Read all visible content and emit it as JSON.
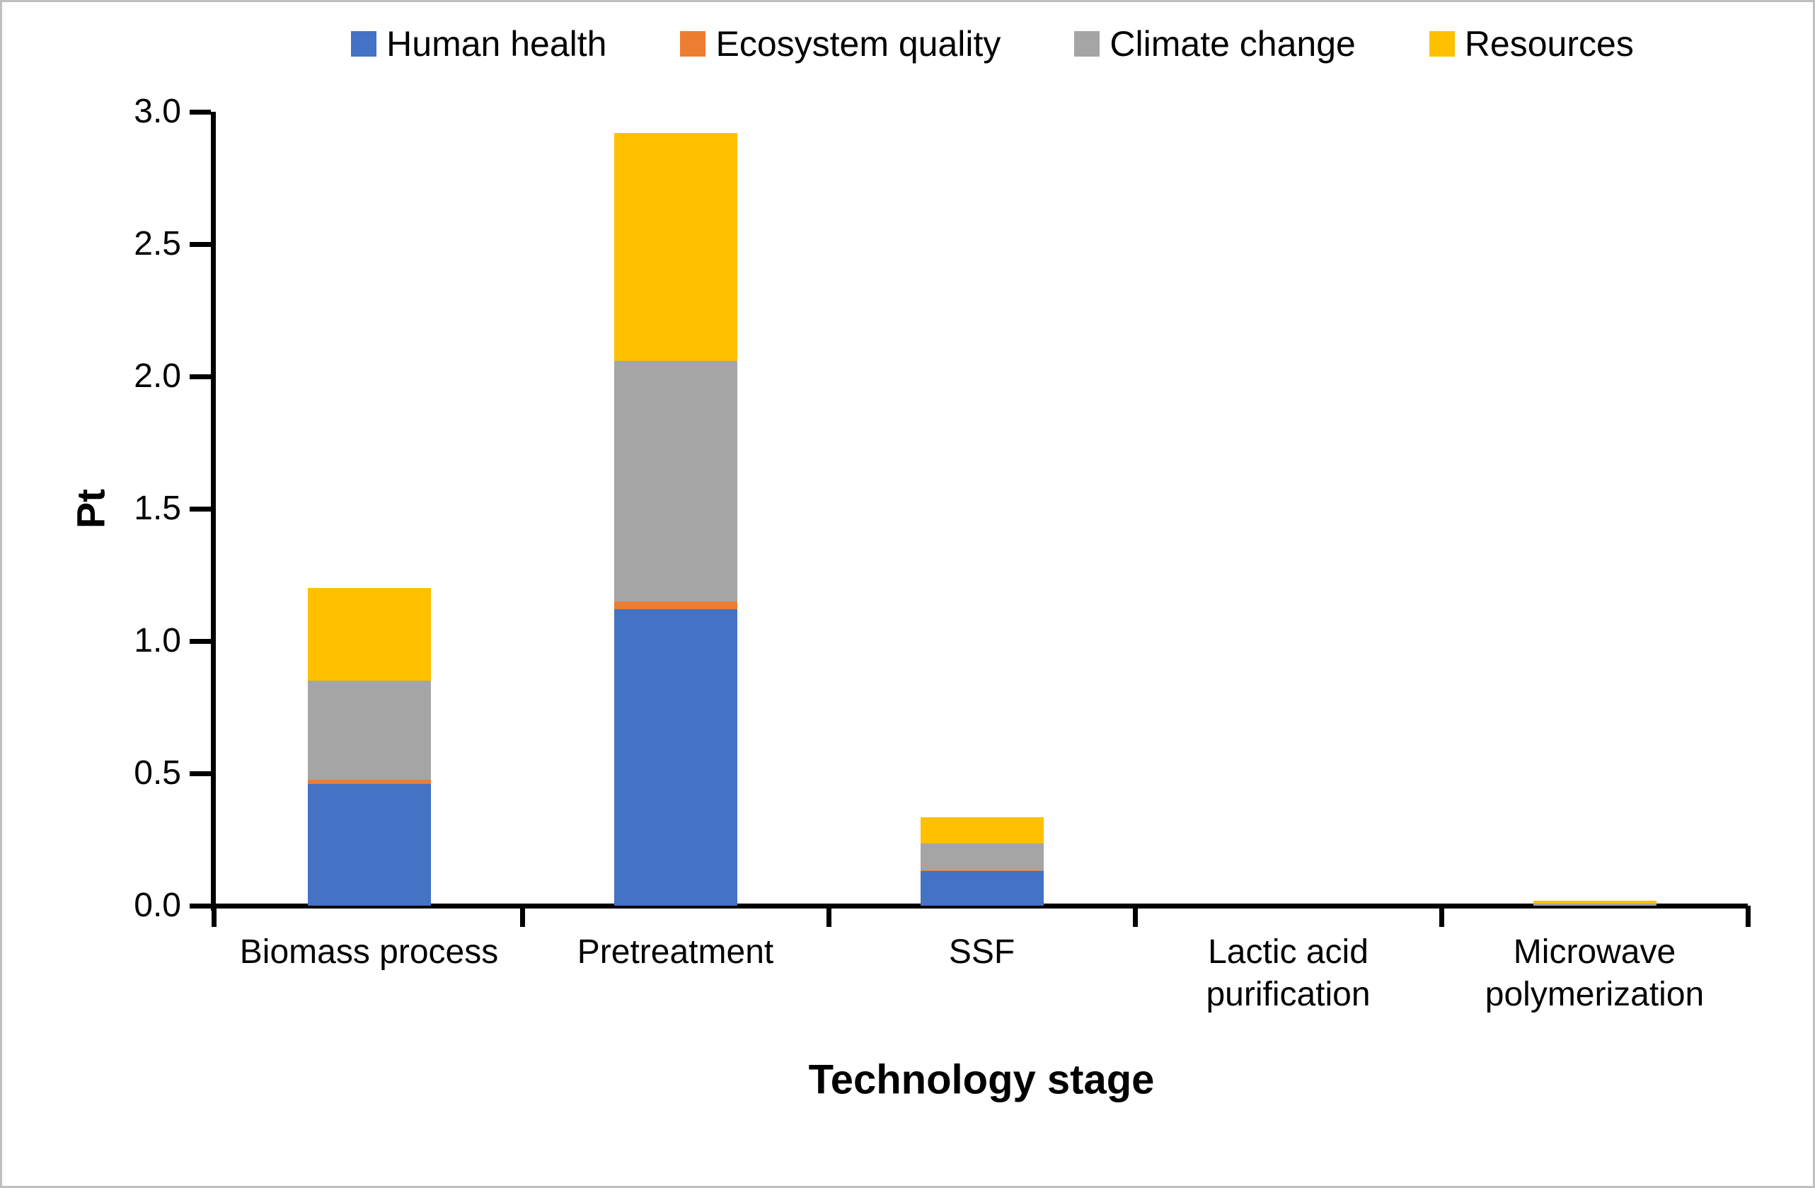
{
  "figure": {
    "background": "#ffffff",
    "border_color": "#bfbfbf"
  },
  "legend": {
    "position": "top",
    "items": [
      {
        "label": "Human health",
        "color": "#4472C4"
      },
      {
        "label": "Ecosystem quality",
        "color": "#ED7D31"
      },
      {
        "label": "Climate change",
        "color": "#A5A5A5"
      },
      {
        "label": "Resources",
        "color": "#FFC000"
      }
    ]
  },
  "y_axis": {
    "title": "Pt",
    "tick_labels": [
      "3.0",
      "2.5",
      "2.0",
      "1.5",
      "1.0",
      "0.5",
      "0.0"
    ],
    "min": 0,
    "max": 3,
    "step": 0.5
  },
  "x_axis": {
    "title": "Technology stage",
    "category_label_lines": [
      [
        "Biomass process"
      ],
      [
        "Pretreatment"
      ],
      [
        "SSF"
      ],
      [
        "Lactic acid",
        "purification"
      ],
      [
        "Microwave",
        "polymerization"
      ]
    ]
  },
  "chart_data": {
    "type": "bar",
    "stacked": true,
    "title": "",
    "xlabel": "Technology stage",
    "ylabel": "Pt",
    "ylim": [
      0,
      3
    ],
    "grid": false,
    "legend_position": "top",
    "categories": [
      "Biomass process",
      "Pretreatment",
      "SSF",
      "Lactic acid purification",
      "Microwave polymerization"
    ],
    "series": [
      {
        "name": "Human health",
        "color": "#4472C4",
        "values": [
          0.46,
          1.12,
          0.13,
          0,
          0
        ]
      },
      {
        "name": "Ecosystem quality",
        "color": "#ED7D31",
        "values": [
          0.015,
          0.03,
          0.005,
          0,
          0
        ]
      },
      {
        "name": "Climate change",
        "color": "#A5A5A5",
        "values": [
          0.375,
          0.91,
          0.1,
          0,
          0.007
        ]
      },
      {
        "name": "Resources",
        "color": "#FFC000",
        "values": [
          0.35,
          0.86,
          0.1,
          0,
          0.012
        ]
      }
    ],
    "category_totals": [
      1.2,
      2.92,
      0.335,
      0.0,
      0.019
    ]
  }
}
